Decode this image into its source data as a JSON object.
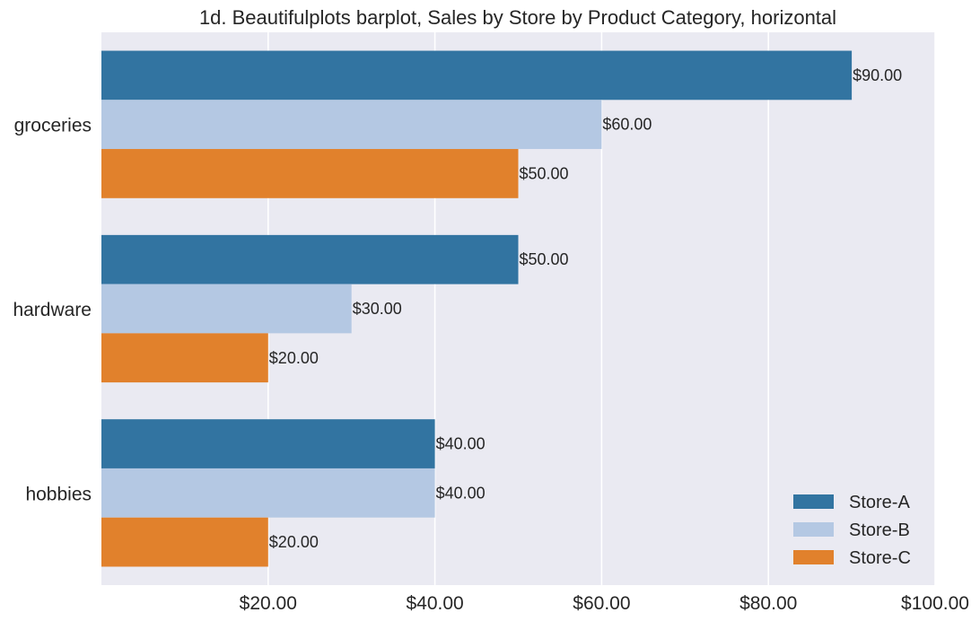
{
  "chart_data": {
    "type": "bar",
    "orientation": "horizontal",
    "title": "1d. Beautifulplots barplot, Sales by Store by Product Category, horizontal",
    "xlabel": "",
    "ylabel": "",
    "categories": [
      "groceries",
      "hardware",
      "hobbies"
    ],
    "series": [
      {
        "name": "Store-A",
        "color": "#3274a1",
        "values": [
          90,
          50,
          40
        ],
        "labels": [
          "$90.00",
          "$50.00",
          "$40.00"
        ]
      },
      {
        "name": "Store-B",
        "color": "#b4c8e3",
        "values": [
          60,
          30,
          40
        ],
        "labels": [
          "$60.00",
          "$30.00",
          "$40.00"
        ]
      },
      {
        "name": "Store-C",
        "color": "#e1812c",
        "values": [
          50,
          20,
          20
        ],
        "labels": [
          "$50.00",
          "$20.00",
          "$20.00"
        ]
      }
    ],
    "xlim": [
      0,
      100
    ],
    "xticks": [
      20,
      40,
      60,
      80,
      100
    ],
    "xtick_labels": [
      "$20.00",
      "$40.00",
      "$60.00",
      "$80.00",
      "$100.00"
    ],
    "grid": true,
    "legend_position": "bottom-right",
    "background_color": "#eaeaf2"
  }
}
